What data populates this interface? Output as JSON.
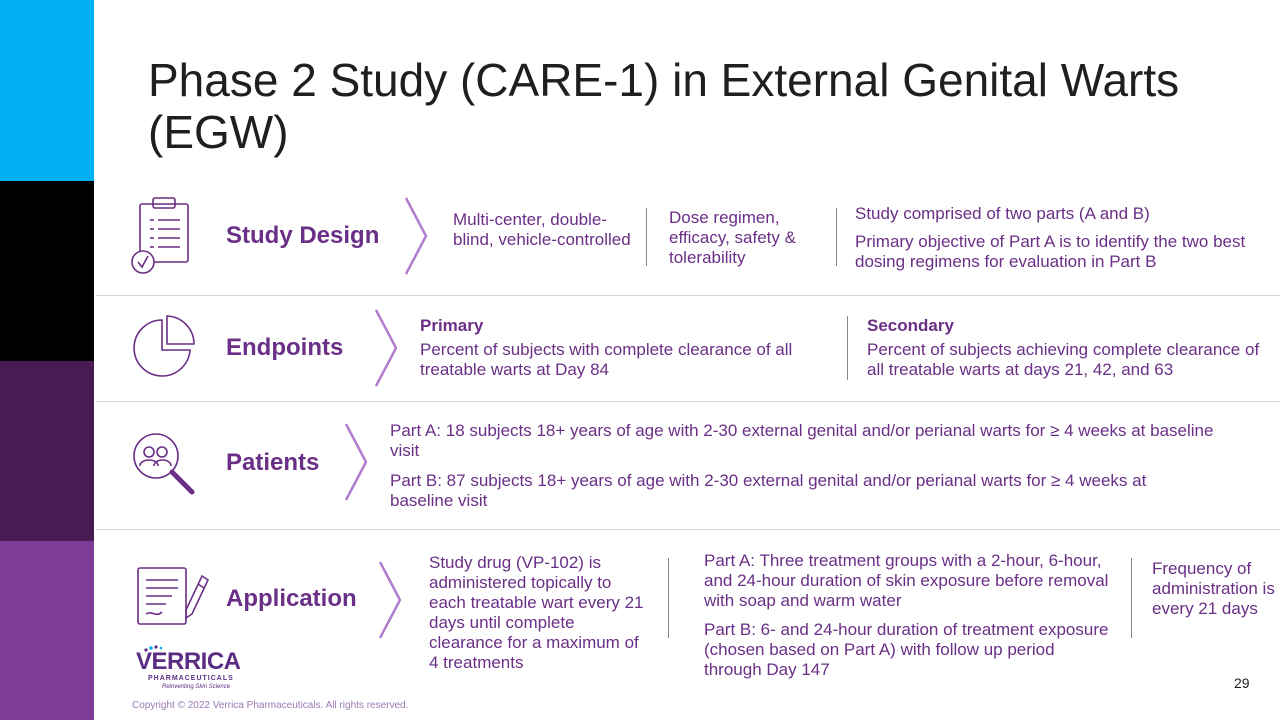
{
  "colors": {
    "sidebar": [
      "#00b0f0",
      "#000000",
      "#4a1a52",
      "#7d3c98"
    ],
    "accent": "#6a2f86",
    "chevron": "#b07ccf"
  },
  "title": "Phase 2 Study (CARE-1) in External Genital Warts (EGW)",
  "rows": {
    "study_design": {
      "icon": "clipboard-check-icon",
      "label": "Study Design",
      "col1": "Multi-center, double-blind, vehicle-controlled",
      "col2": "Dose regimen, efficacy, safety & tolerability",
      "col3_line1": "Study comprised of two parts (A and B)",
      "col3_line2": "Primary objective of Part A is to identify the two best dosing regimens for evaluation in Part B"
    },
    "endpoints": {
      "icon": "pie-chart-icon",
      "label": "Endpoints",
      "primary_heading": "Primary",
      "primary_text": "Percent of subjects with complete clearance of all treatable warts at Day 84",
      "secondary_heading": "Secondary",
      "secondary_text": "Percent of subjects achieving complete clearance of all treatable warts at days 21, 42, and 63"
    },
    "patients": {
      "icon": "people-search-icon",
      "label": "Patients",
      "part_a": "Part A: 18 subjects 18+ years of age with 2-30 external genital and/or perianal warts for ≥ 4 weeks at baseline visit",
      "part_b": "Part B: 87 subjects 18+ years of age with 2-30 external genital and/or perianal warts for ≥ 4 weeks at baseline visit"
    },
    "application": {
      "icon": "document-pen-icon",
      "label": "Application",
      "col1": "Study drug (VP-102) is administered topically to each treatable wart every 21 days until complete clearance for a maximum of 4 treatments",
      "part_a": "Part A: Three treatment groups with a 2-hour, 6-hour, and 24-hour duration of skin exposure before removal with soap and warm water",
      "part_b": "Part B: 6- and 24-hour duration of treatment exposure (chosen based on Part A) with follow up period through Day 147",
      "col3": "Frequency of administration is every 21 days"
    }
  },
  "logo": {
    "name": "VERRICA",
    "sub": "PHARMACEUTICALS",
    "tagline": "Reinventing Skin Science"
  },
  "copyright": "Copyright © 2022 Verrica Pharmaceuticals. All rights reserved.",
  "page_number": "29"
}
